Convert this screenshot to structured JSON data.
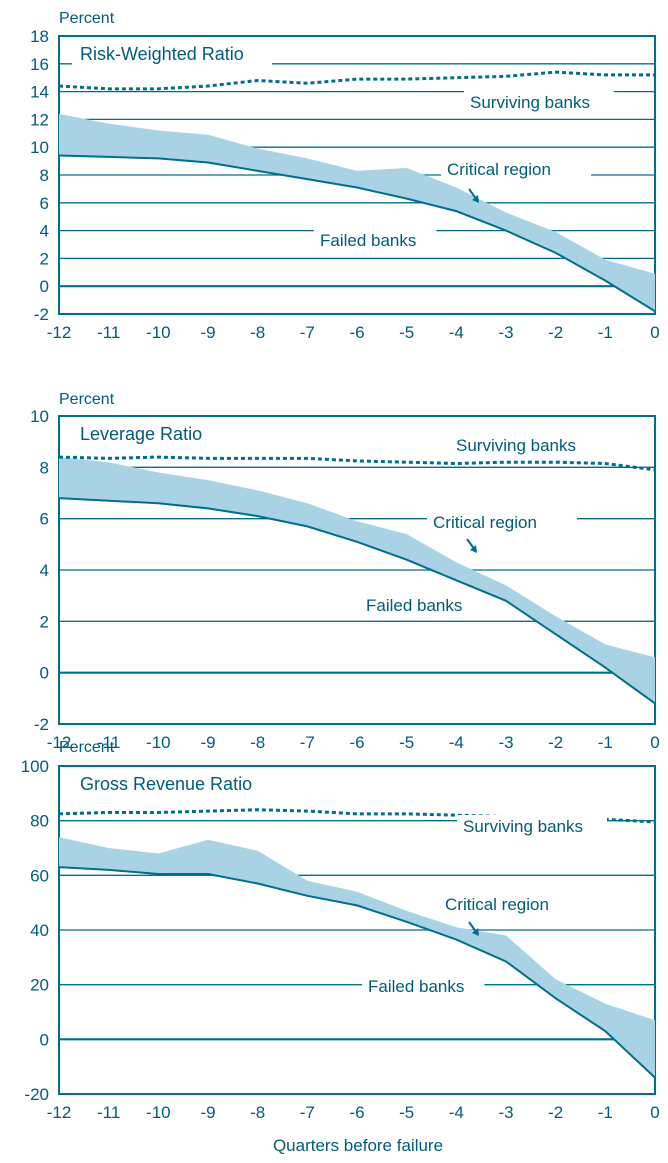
{
  "colors": {
    "line": "#006f8e",
    "text": "#005c78",
    "band": "#a9d3e4",
    "background": "#ffffff"
  },
  "footer": {
    "xlabel": "Quarters before failure"
  },
  "chart_data": [
    {
      "type": "line",
      "title": "Risk-Weighted Ratio",
      "ylabel": "Percent",
      "xlabel": "",
      "ylim": [
        -2,
        18
      ],
      "yticks": [
        -2,
        0,
        2,
        4,
        6,
        8,
        10,
        12,
        14,
        16,
        18
      ],
      "gridlines": [
        0,
        2,
        4,
        6,
        8,
        10,
        12,
        14,
        16
      ],
      "x": [
        -12,
        -11,
        -10,
        -9,
        -8,
        -7,
        -6,
        -5,
        -4,
        -3,
        -2,
        -1,
        0
      ],
      "xticks": [
        "-12",
        "-11",
        "-10",
        "-9",
        "-8",
        "-7",
        "-6",
        "-5",
        "-4",
        "-3",
        "-2",
        "-1",
        "0"
      ],
      "series": [
        {
          "name": "Surviving banks",
          "style": "dashed",
          "values": [
            14.4,
            14.2,
            14.2,
            14.4,
            14.8,
            14.6,
            14.9,
            14.9,
            15.0,
            15.1,
            15.4,
            15.2,
            15.2
          ]
        },
        {
          "name": "Failed banks",
          "style": "solid",
          "values": [
            9.4,
            9.3,
            9.2,
            8.9,
            8.3,
            7.7,
            7.1,
            6.3,
            5.4,
            4.0,
            2.4,
            0.4,
            -1.8
          ]
        },
        {
          "name": "Critical region",
          "style": "band",
          "values": [
            12.4,
            11.7,
            11.2,
            10.9,
            9.9,
            9.2,
            8.3,
            8.5,
            7.1,
            5.3,
            3.9,
            1.9,
            0.9
          ]
        }
      ],
      "annotations": [
        "Surviving banks",
        "Critical region",
        "Failed banks"
      ]
    },
    {
      "type": "line",
      "title": "Leverage Ratio",
      "ylabel": "Percent",
      "xlabel": "",
      "ylim": [
        -2,
        10
      ],
      "yticks": [
        -2,
        0,
        2,
        4,
        6,
        8,
        10
      ],
      "gridlines": [
        0,
        2,
        4,
        6,
        8
      ],
      "x": [
        -12,
        -11,
        -10,
        -9,
        -8,
        -7,
        -6,
        -5,
        -4,
        -3,
        -2,
        -1,
        0
      ],
      "xticks": [
        "-12",
        "-11",
        "-10",
        "-9",
        "-8",
        "-7",
        "-6",
        "-5",
        "-4",
        "-3",
        "-2",
        "-1",
        "0"
      ],
      "series": [
        {
          "name": "Surviving banks",
          "style": "dashed",
          "values": [
            8.4,
            8.35,
            8.4,
            8.35,
            8.35,
            8.35,
            8.25,
            8.2,
            8.15,
            8.2,
            8.2,
            8.15,
            7.9
          ]
        },
        {
          "name": "Failed banks",
          "style": "solid",
          "values": [
            6.8,
            6.7,
            6.6,
            6.4,
            6.1,
            5.7,
            5.1,
            4.4,
            3.6,
            2.8,
            1.5,
            0.2,
            -1.2
          ]
        },
        {
          "name": "Critical region",
          "style": "band",
          "values": [
            8.4,
            8.2,
            7.8,
            7.5,
            7.1,
            6.6,
            5.9,
            5.4,
            4.3,
            3.4,
            2.2,
            1.1,
            0.6
          ]
        }
      ],
      "annotations": [
        "Surviving banks",
        "Critical region",
        "Failed banks"
      ]
    },
    {
      "type": "line",
      "title": "Gross Revenue Ratio",
      "ylabel": "Percent",
      "xlabel": "Quarters before failure",
      "ylim": [
        -20,
        100
      ],
      "yticks": [
        -20,
        0,
        20,
        40,
        60,
        80,
        100
      ],
      "gridlines": [
        0,
        20,
        40,
        60,
        80
      ],
      "x": [
        -12,
        -11,
        -10,
        -9,
        -8,
        -7,
        -6,
        -5,
        -4,
        -3,
        -2,
        -1,
        0
      ],
      "xticks": [
        "-12",
        "-11",
        "-10",
        "-9",
        "-8",
        "-7",
        "-6",
        "-5",
        "-4",
        "-3",
        "-2",
        "-1",
        "0"
      ],
      "series": [
        {
          "name": "Surviving banks",
          "style": "dashed",
          "values": [
            82.5,
            83.0,
            83.0,
            83.5,
            84.0,
            83.5,
            82.5,
            82.5,
            82.0,
            81.5,
            81.0,
            80.5,
            79.5
          ]
        },
        {
          "name": "Failed banks",
          "style": "solid",
          "values": [
            63,
            62,
            60.5,
            60.5,
            57,
            52.5,
            49,
            43,
            36.5,
            28.5,
            15,
            3,
            -14
          ]
        },
        {
          "name": "Critical region",
          "style": "band",
          "values": [
            74,
            70,
            68,
            73,
            69,
            58,
            54,
            47,
            41,
            38,
            22,
            13,
            7
          ]
        }
      ],
      "annotations": [
        "Surviving banks",
        "Critical region",
        "Failed banks"
      ]
    }
  ]
}
